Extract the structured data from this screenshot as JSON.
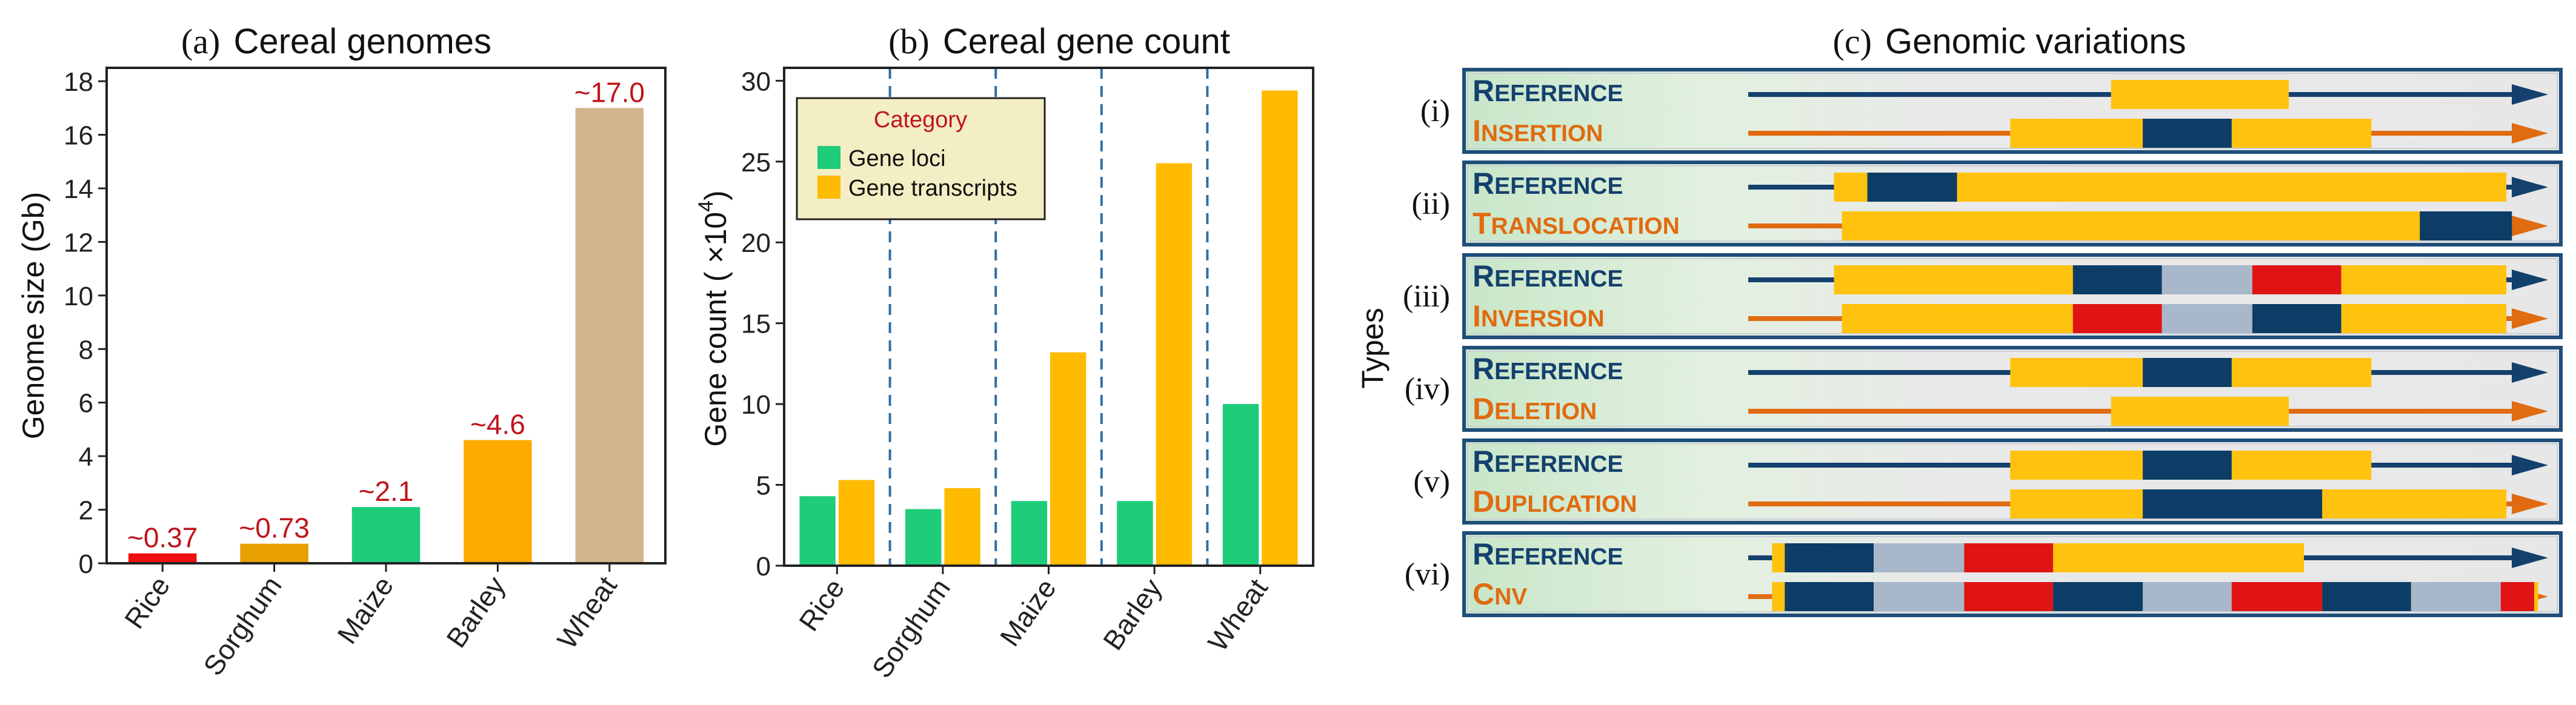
{
  "chart_data": [
    {
      "type": "bar",
      "panel_label": "(a)",
      "title": "Cereal genomes",
      "ylabel": "Genome size (Gb)",
      "ylim": [
        0,
        18.5
      ],
      "yticks": [
        0,
        2,
        4,
        6,
        8,
        10,
        12,
        14,
        16,
        18
      ],
      "categories": [
        "Rice",
        "Sorghum",
        "Maize",
        "Barley",
        "Wheat"
      ],
      "values": [
        0.37,
        0.73,
        2.1,
        4.6,
        17.0
      ],
      "value_labels": [
        "~0.37",
        "~0.73",
        "~2.1",
        "~4.6",
        "~17.0"
      ],
      "colors": [
        "#EE1111",
        "#E8A000",
        "#1FCC7A",
        "#FFAA00",
        "#D2B48C"
      ]
    },
    {
      "type": "bar",
      "panel_label": "(b)",
      "title": "Cereal gene count",
      "ylabel": "Gene count ( ×10",
      "ylabel_exponent": "4",
      "ylabel_close": ")",
      "ylim": [
        0,
        30.8
      ],
      "yticks": [
        0,
        5,
        10,
        15,
        20,
        25,
        30
      ],
      "categories": [
        "Rice",
        "Sorghum",
        "Maize",
        "Barley",
        "Wheat"
      ],
      "legend": {
        "title": "Category",
        "title_color": "#C0141C",
        "background": "#F4EEC4",
        "position": "top-left"
      },
      "series": [
        {
          "name": "Gene loci",
          "color": "#1FCC7A",
          "values": [
            4.3,
            3.5,
            4.0,
            4.0,
            10.0
          ]
        },
        {
          "name": "Gene transcripts",
          "color": "#FFBB00",
          "values": [
            5.3,
            4.8,
            13.2,
            24.9,
            29.4
          ]
        }
      ]
    }
  ],
  "panel_c": {
    "panel_label": "(c)",
    "title": "Genomic variations",
    "axis_label": "Types",
    "reference_label": "Reference",
    "colors": {
      "reference": "#14406E",
      "variant": "#E06B10",
      "segment": "#FFC20E",
      "dark_block": "#0C3D66",
      "grey_block": "#A9B7CB",
      "red_block": "#E01414"
    },
    "rows": [
      {
        "numeral": "(i)",
        "variant": "Insertion",
        "ref": [
          [
            0.457,
            0.681,
            "segment"
          ]
        ],
        "var": [
          [
            0.33,
            0.785,
            "segment"
          ],
          [
            0.497,
            0.609,
            "dark_block"
          ]
        ]
      },
      {
        "numeral": "(ii)",
        "variant": "Translocation",
        "ref": [
          [
            0.108,
            0.955,
            "segment"
          ],
          [
            0.15,
            0.263,
            "dark_block"
          ]
        ],
        "var": [
          [
            0.118,
            0.955,
            "segment"
          ],
          [
            0.846,
            0.962,
            "dark_block"
          ]
        ]
      },
      {
        "numeral": "(iii)",
        "variant": "Inversion",
        "ref": [
          [
            0.108,
            0.955,
            "segment"
          ],
          [
            0.409,
            0.521,
            "dark_block"
          ],
          [
            0.521,
            0.635,
            "grey_block"
          ],
          [
            0.635,
            0.747,
            "red_block"
          ]
        ],
        "var": [
          [
            0.118,
            0.955,
            "segment"
          ],
          [
            0.409,
            0.521,
            "red_block"
          ],
          [
            0.521,
            0.635,
            "grey_block"
          ],
          [
            0.635,
            0.747,
            "dark_block"
          ]
        ]
      },
      {
        "numeral": "(iv)",
        "variant": "Deletion",
        "ref": [
          [
            0.33,
            0.785,
            "segment"
          ],
          [
            0.497,
            0.609,
            "dark_block"
          ]
        ],
        "var": [
          [
            0.457,
            0.681,
            "segment"
          ]
        ]
      },
      {
        "numeral": "(v)",
        "variant": "Duplication",
        "ref": [
          [
            0.33,
            0.785,
            "segment"
          ],
          [
            0.497,
            0.609,
            "dark_block"
          ]
        ],
        "var": [
          [
            0.33,
            0.955,
            "segment"
          ],
          [
            0.497,
            0.723,
            "dark_block"
          ]
        ]
      },
      {
        "numeral": "(vi)",
        "variant": "CNV",
        "ref": [
          [
            0.03,
            0.7,
            "segment"
          ],
          [
            0.046,
            0.158,
            "dark_block"
          ],
          [
            0.158,
            0.272,
            "grey_block"
          ],
          [
            0.272,
            0.384,
            "red_block"
          ]
        ],
        "var": [
          [
            0.03,
            0.995,
            "segment"
          ],
          [
            0.046,
            0.158,
            "dark_block"
          ],
          [
            0.158,
            0.272,
            "grey_block"
          ],
          [
            0.272,
            0.384,
            "red_block"
          ],
          [
            0.384,
            0.497,
            "dark_block"
          ],
          [
            0.497,
            0.609,
            "grey_block"
          ],
          [
            0.609,
            0.723,
            "red_block"
          ],
          [
            0.723,
            0.835,
            "dark_block"
          ],
          [
            0.835,
            0.948,
            "grey_block"
          ],
          [
            0.948,
            0.99,
            "red_block"
          ]
        ]
      }
    ]
  }
}
